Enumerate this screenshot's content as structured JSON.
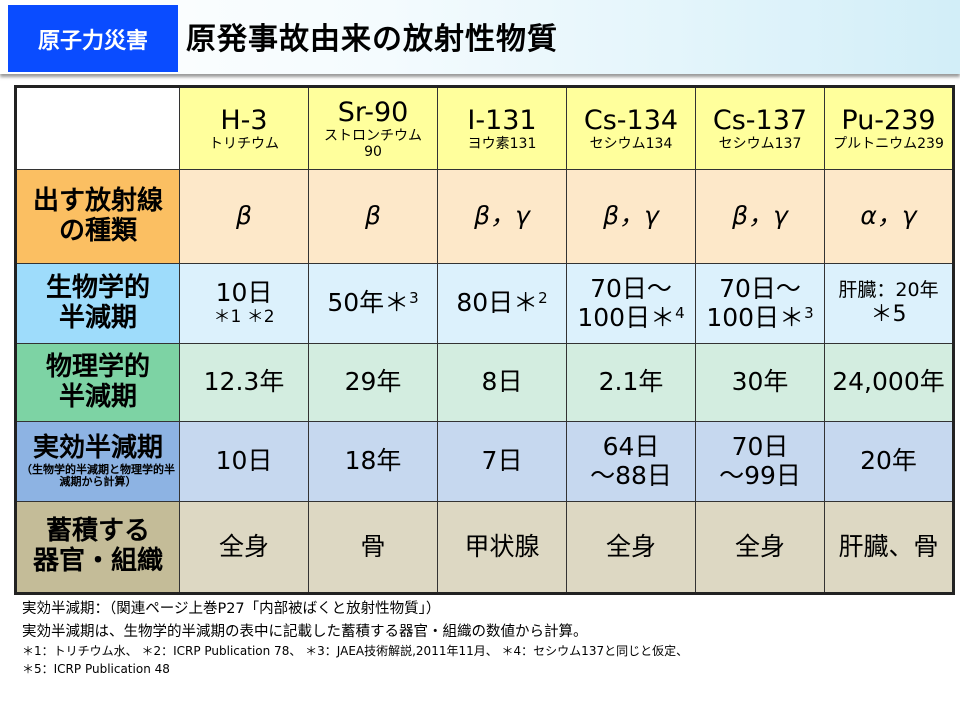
{
  "header": {
    "badge": "原子力災害",
    "title": "原発事故由来の放射性物質"
  },
  "columns": [
    {
      "symbol": "H-3",
      "name": "トリチウム"
    },
    {
      "symbol": "Sr-90",
      "name": "ストロンチウム90"
    },
    {
      "symbol": "I-131",
      "name": "ヨウ素131"
    },
    {
      "symbol": "Cs-134",
      "name": "セシウム134"
    },
    {
      "symbol": "Cs-137",
      "name": "セシウム137"
    },
    {
      "symbol": "Pu-239",
      "name": "プルトニウム239"
    }
  ],
  "rows": [
    {
      "label": [
        "出す放射線",
        "の種類"
      ],
      "note": "",
      "color": "#fbbf62",
      "cell_color": "#fde8c9",
      "cells": [
        [
          {
            "t": "β",
            "s": ""
          }
        ],
        [
          {
            "t": "β",
            "s": ""
          }
        ],
        [
          {
            "t": "β，γ",
            "s": ""
          }
        ],
        [
          {
            "t": "β，γ",
            "s": ""
          }
        ],
        [
          {
            "t": "β，γ",
            "s": ""
          }
        ],
        [
          {
            "t": "α，γ",
            "s": ""
          }
        ]
      ]
    },
    {
      "label": [
        "生物学的",
        "半減期"
      ],
      "note": "",
      "color": "#9edcfb",
      "cell_color": "#dcf1fc",
      "cells": [
        [
          {
            "t": "10日",
            "s": ""
          },
          {
            "t": "＊1 ＊2",
            "s": ""
          }
        ],
        [
          {
            "t": "50年＊",
            "s": "3"
          }
        ],
        [
          {
            "t": "80日＊",
            "s": "2"
          }
        ],
        [
          {
            "t": "70日～",
            "s": ""
          },
          {
            "t": "100日＊",
            "s": "4"
          }
        ],
        [
          {
            "t": "70日～",
            "s": ""
          },
          {
            "t": "100日＊",
            "s": "3"
          }
        ],
        [
          {
            "t": "肝臓：20年",
            "s": ""
          },
          {
            "t": "＊5",
            "s": ""
          }
        ]
      ]
    },
    {
      "label": [
        "物理学的",
        "半減期"
      ],
      "note": "",
      "color": "#7dd3a4",
      "cell_color": "#d3ede0",
      "cells": [
        [
          {
            "t": "12.3年",
            "s": ""
          }
        ],
        [
          {
            "t": "29年",
            "s": ""
          }
        ],
        [
          {
            "t": "8日",
            "s": ""
          }
        ],
        [
          {
            "t": "2.1年",
            "s": ""
          }
        ],
        [
          {
            "t": "30年",
            "s": ""
          }
        ],
        [
          {
            "t": "24,000年",
            "s": ""
          }
        ]
      ]
    },
    {
      "label": [
        "実効半減期"
      ],
      "note": "（生物学的半減期と物理学的半減期から計算）",
      "color": "#8db3e3",
      "cell_color": "#c6d8ef",
      "cells": [
        [
          {
            "t": "10日",
            "s": ""
          }
        ],
        [
          {
            "t": "18年",
            "s": ""
          }
        ],
        [
          {
            "t": "7日",
            "s": ""
          }
        ],
        [
          {
            "t": "64日",
            "s": ""
          },
          {
            "t": "～88日",
            "s": ""
          }
        ],
        [
          {
            "t": "70日",
            "s": ""
          },
          {
            "t": "～99日",
            "s": ""
          }
        ],
        [
          {
            "t": "20年",
            "s": ""
          }
        ]
      ]
    },
    {
      "label": [
        "蓄積する",
        "器官・組織"
      ],
      "note": "",
      "color": "#c4bc98",
      "cell_color": "#ddd8c3",
      "cells": [
        [
          {
            "t": "全身",
            "s": ""
          }
        ],
        [
          {
            "t": "骨",
            "s": ""
          }
        ],
        [
          {
            "t": "甲状腺",
            "s": ""
          }
        ],
        [
          {
            "t": "全身",
            "s": ""
          }
        ],
        [
          {
            "t": "全身",
            "s": ""
          }
        ],
        [
          {
            "t": "肝臓、骨",
            "s": ""
          }
        ]
      ]
    }
  ],
  "footer": {
    "line1": "実効半減期：（関連ページ上巻P27「内部被ばくと放射性物質」）",
    "line2": "実効半減期は、生物学的半減期の表中に記載した蓄積する器官・組織の数値から計算。",
    "line3": "＊1：トリチウム水、 ＊2：ICRP Publication 78、 ＊3：JAEA技術解説,2011年11月、 ＊4：セシウム137と同じと仮定、",
    "line4": "＊5：ICRP Publication 48"
  }
}
